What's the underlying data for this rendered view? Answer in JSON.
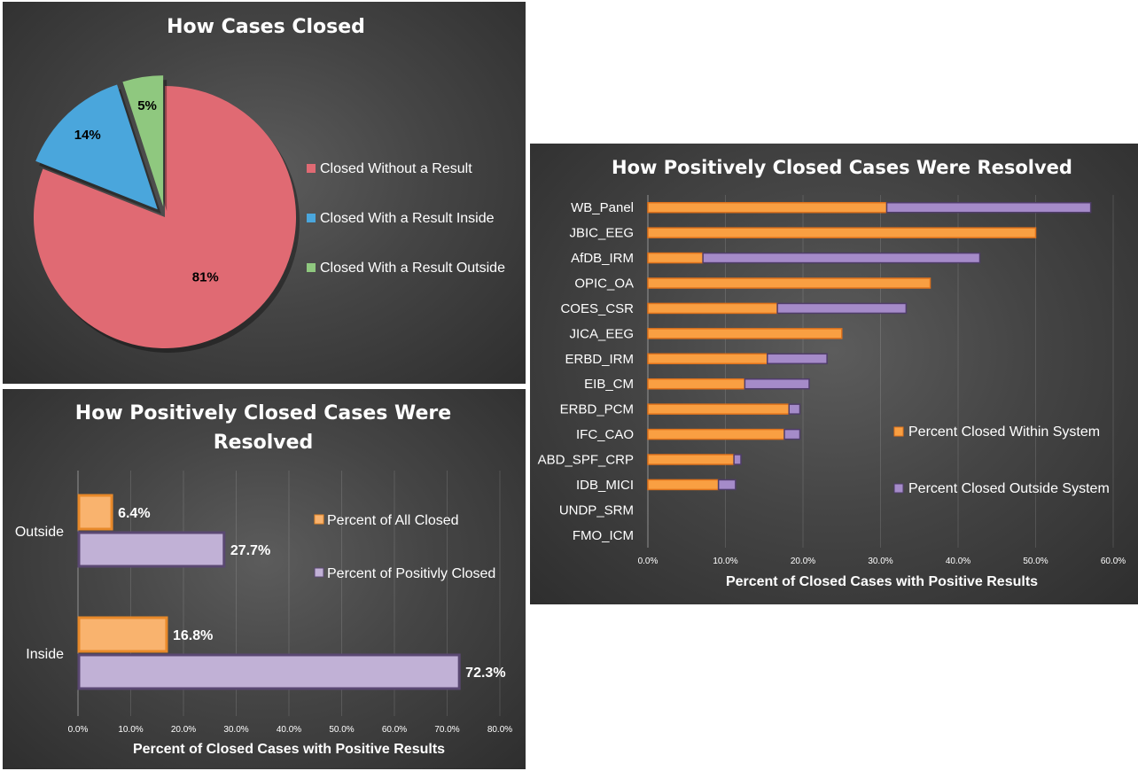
{
  "chart_data": [
    {
      "type": "pie",
      "title": "How Cases Closed",
      "slices": [
        {
          "label": "Closed Without a Result",
          "value": 81,
          "display": "81%",
          "color": "#e06a73"
        },
        {
          "label": "Closed With a Result Inside",
          "value": 14,
          "display": "14%",
          "color": "#4aa6dc"
        },
        {
          "label": "Closed With a Result Outside",
          "value": 5,
          "display": "5%",
          "color": "#8fc87f"
        }
      ],
      "legend_position": "right"
    },
    {
      "type": "bar",
      "orientation": "horizontal",
      "title": "How Positively Closed Cases Were Resolved",
      "categories": [
        "WB_Panel",
        "JBIC_EEG",
        "AfDB_IRM",
        "OPIC_OA",
        "COES_CSR",
        "JICA_EEG",
        "ERBD_IRM",
        "EIB_CM",
        "ERBD_PCM",
        "IFC_CAO",
        "ABD_SPF_CRP",
        "IDB_MICI",
        "UNDP_SRM",
        "FMO_ICM"
      ],
      "stacked": true,
      "series": [
        {
          "name": "Percent Closed Within System",
          "color": "#f99f42",
          "values": [
            30.8,
            50.0,
            7.1,
            36.4,
            16.7,
            25.0,
            15.4,
            12.5,
            18.2,
            17.6,
            11.1,
            9.1,
            0,
            0
          ]
        },
        {
          "name": "Percent Closed Outside System",
          "color": "#a58bc9",
          "values": [
            26.3,
            0,
            35.7,
            0,
            16.6,
            0,
            7.7,
            8.3,
            1.4,
            2.0,
            0.9,
            2.2,
            0,
            0
          ]
        }
      ],
      "xlabel": "Percent of Closed Cases with Positive Results",
      "xlim": [
        0,
        60
      ],
      "xticks": [
        "0.0%",
        "10.0%",
        "20.0%",
        "30.0%",
        "40.0%",
        "50.0%",
        "60.0%"
      ],
      "legend_position": "right"
    },
    {
      "type": "bar",
      "orientation": "horizontal",
      "title": "How Positively Closed Cases Were Resolved",
      "categories": [
        "Outside",
        "Inside"
      ],
      "series": [
        {
          "name": "Percent of All Closed",
          "color": "#f9b36e",
          "border": "#e8892a",
          "values": [
            6.4,
            16.8
          ],
          "labels": [
            "6.4%",
            "16.8%"
          ]
        },
        {
          "name": "Percent of Positivly Closed",
          "color": "#c1b1d6",
          "border": "#5a4872",
          "values": [
            27.7,
            72.3
          ],
          "labels": [
            "27.7%",
            "72.3%"
          ]
        }
      ],
      "xlabel": "Percent of Closed Cases with Positive Results",
      "xlim": [
        0,
        80
      ],
      "xticks": [
        "0.0%",
        "10.0%",
        "20.0%",
        "30.0%",
        "40.0%",
        "50.0%",
        "60.0%",
        "70.0%",
        "80.0%"
      ],
      "legend_position": "right"
    }
  ]
}
